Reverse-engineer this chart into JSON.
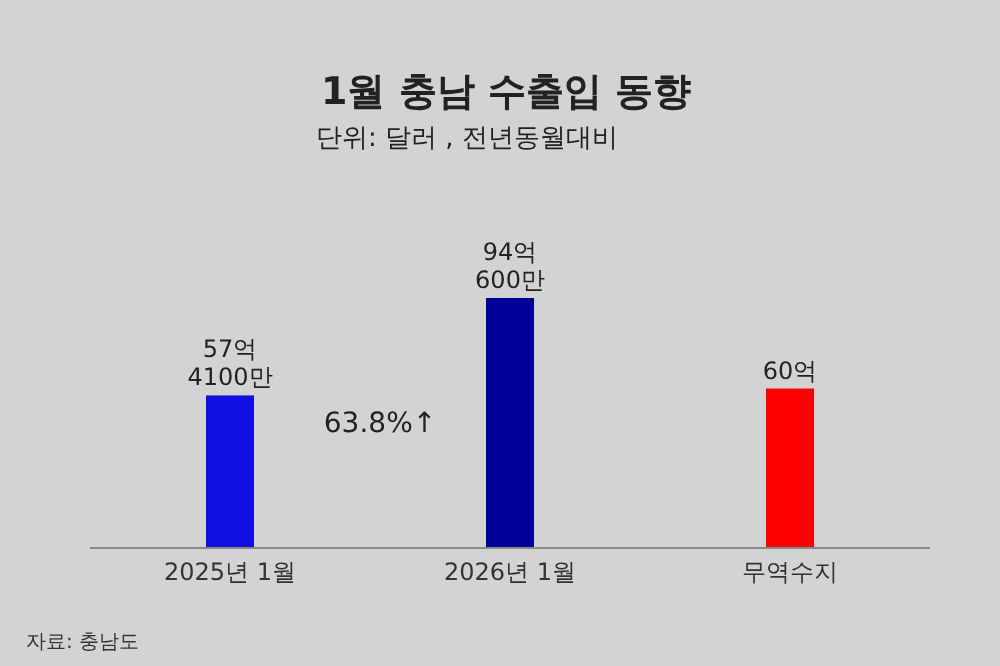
{
  "chart_data": {
    "type": "bar",
    "title": "1월 충남 수출입 동향",
    "subtitle": "단위: 달러 , 전년동월대비",
    "categories": [
      "2025년 1월",
      "2026년 1월",
      "무역수지"
    ],
    "values": [
      57.41,
      94.06,
      60
    ],
    "colors": [
      "#1010e0",
      "#000099",
      "#ff0000"
    ],
    "value_labels": [
      "57억 4100만",
      "94억 600만",
      "60억"
    ],
    "annotations": [
      "63.8%↑",
      "자료: 충남도"
    ]
  }
}
